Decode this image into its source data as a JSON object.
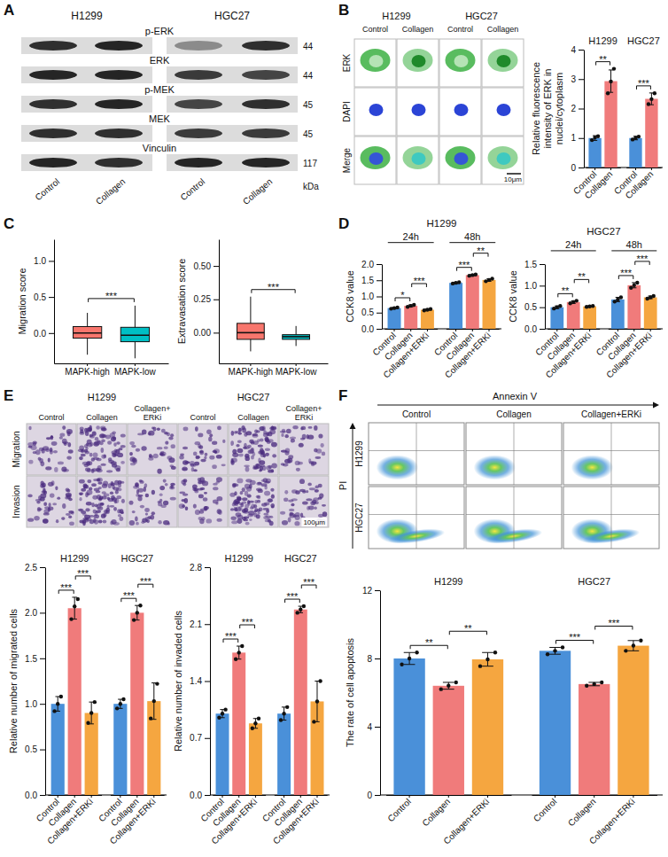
{
  "panel_letters": [
    "A",
    "B",
    "C",
    "D",
    "E",
    "F"
  ],
  "blot": {
    "cell_lines": [
      "H1299",
      "HGC27"
    ],
    "lanes": [
      "Control",
      "Collagen",
      "Control",
      "Collagen"
    ],
    "unit": "kDa",
    "rows": [
      {
        "label": "p-ERK",
        "kda": 44,
        "intensity": [
          0.85,
          0.9,
          0.4,
          0.85
        ]
      },
      {
        "label": "ERK",
        "kda": 44,
        "intensity": [
          0.9,
          0.9,
          0.8,
          0.75
        ]
      },
      {
        "label": "p-MEK",
        "kda": 45,
        "intensity": [
          0.85,
          0.9,
          0.75,
          0.85
        ]
      },
      {
        "label": "MEK",
        "kda": 45,
        "intensity": [
          0.85,
          0.85,
          0.8,
          0.8
        ]
      },
      {
        "label": "Vinculin",
        "kda": 117,
        "intensity": [
          0.9,
          0.85,
          0.9,
          0.9
        ]
      }
    ]
  },
  "if_images": {
    "cell_lines": [
      "H1299",
      "HGC27"
    ],
    "conditions": [
      "Control",
      "Collagen",
      "Control",
      "Collagen"
    ],
    "channels": [
      "ERK",
      "DAPI",
      "Merge"
    ],
    "scale_bar": "10μm"
  },
  "transwell": {
    "cell_lines": [
      "H1299",
      "HGC27"
    ],
    "conditions": [
      "Control",
      "Collagen",
      "Collagen+ERKi"
    ],
    "assays": [
      "Migration",
      "Invasion"
    ],
    "scale_bar": "100μm"
  },
  "flow": {
    "x_label": "Annexin V",
    "y_label": "PI",
    "cell_lines": [
      "H1299",
      "HGC27"
    ],
    "conditions": [
      "Control",
      "Collagen",
      "Collagen+ERKi"
    ]
  },
  "chart_data": [
    {
      "type": "bar",
      "ylabel": "Relative fluorescence intensity of ERK in nuclei/cytoplasm",
      "groups": [
        "H1299",
        "HGC27"
      ],
      "categories": [
        "Control",
        "Collagen",
        "Control",
        "Collagen"
      ],
      "values": [
        1.0,
        2.93,
        1.0,
        2.33
      ],
      "errors": [
        0.08,
        0.38,
        0.06,
        0.2
      ],
      "points": [
        [
          0.93,
          1.02,
          1.06
        ],
        [
          2.52,
          2.92,
          3.35
        ],
        [
          0.95,
          1.0,
          1.05
        ],
        [
          2.15,
          2.32,
          2.52
        ]
      ],
      "colors": [
        "#4a90d9",
        "#f07b7b",
        "#4a90d9",
        "#f07b7b"
      ],
      "ylim": [
        0,
        4
      ],
      "yticks": [
        0,
        1,
        2,
        3,
        4
      ],
      "significance": [
        {
          "group": "H1299",
          "pair": [
            "Control",
            "Collagen"
          ],
          "label": "**"
        },
        {
          "group": "HGC27",
          "pair": [
            "Control",
            "Collagen"
          ],
          "label": "***"
        }
      ]
    },
    {
      "type": "box",
      "ylabel": "Migration score",
      "categories": [
        "MAPK-high",
        "MAPK-low"
      ],
      "q1": [
        -0.07,
        -0.12
      ],
      "median": [
        0.0,
        -0.03
      ],
      "q3": [
        0.09,
        0.08
      ],
      "whisker_low": [
        -0.3,
        -0.35
      ],
      "whisker_high": [
        0.28,
        0.38
      ],
      "colors": [
        "#f8766d",
        "#00bfc4"
      ],
      "ylim": [
        -0.42,
        1.3
      ],
      "yticks": [
        {
          "value": 0,
          "label": "0.0"
        },
        0.5,
        {
          "value": 1,
          "label": "1.0"
        }
      ],
      "significance": [
        {
          "pair": [
            "MAPK-high",
            "MAPK-low"
          ],
          "label": "***"
        }
      ]
    },
    {
      "type": "box",
      "ylabel": "Extravasation score",
      "categories": [
        "MAPK-high",
        "MAPK-low"
      ],
      "q1": [
        -0.05,
        -0.05
      ],
      "median": [
        0.0,
        -0.03
      ],
      "q3": [
        0.07,
        -0.015
      ],
      "whisker_low": [
        -0.14,
        -0.1
      ],
      "whisker_high": [
        0.27,
        0.05
      ],
      "colors": [
        "#f8766d",
        "#00bfc4"
      ],
      "ylim": [
        -0.23,
        0.7
      ],
      "yticks": [
        {
          "value": 0,
          "label": "0.00"
        },
        0.25,
        {
          "value": 0.5,
          "label": "0.50"
        }
      ],
      "significance": [
        {
          "pair": [
            "MAPK-high",
            "MAPK-low"
          ],
          "label": "***"
        }
      ]
    },
    {
      "type": "bar",
      "title": "H1299",
      "ylabel": "CCK8 value",
      "groups": [
        "24h",
        "48h"
      ],
      "categories": [
        "Control",
        "Collagen",
        "Collagen+ERKi",
        "Control",
        "Collagen",
        "Collagen+ERKi"
      ],
      "values": [
        0.64,
        0.71,
        0.59,
        1.42,
        1.66,
        1.51
      ],
      "errors": [
        0.02,
        0.03,
        0.02,
        0.02,
        0.02,
        0.04
      ],
      "points": [
        [
          0.62,
          0.64,
          0.66
        ],
        [
          0.68,
          0.71,
          0.74
        ],
        [
          0.57,
          0.59,
          0.61
        ],
        [
          1.4,
          1.42,
          1.44
        ],
        [
          1.64,
          1.66,
          1.68
        ],
        [
          1.47,
          1.51,
          1.55
        ]
      ],
      "colors": [
        "#4a90d9",
        "#f07b7b",
        "#f5a640",
        "#4a90d9",
        "#f07b7b",
        "#f5a640"
      ],
      "ylim": [
        0,
        2
      ],
      "yticks": [
        {
          "value": 0,
          "label": "0.0"
        },
        0.5,
        {
          "value": 1,
          "label": "1.0"
        },
        1.5,
        {
          "value": 2,
          "label": "2.0"
        }
      ],
      "significance": [
        {
          "group": "24h",
          "pair": [
            "Control",
            "Collagen"
          ],
          "label": "*"
        },
        {
          "group": "24h",
          "pair": [
            "Collagen",
            "Collagen+ERKi"
          ],
          "label": "***"
        },
        {
          "group": "48h",
          "pair": [
            "Control",
            "Collagen"
          ],
          "label": "***"
        },
        {
          "group": "48h",
          "pair": [
            "Collagen",
            "Collagen+ERKi"
          ],
          "label": "**"
        }
      ]
    },
    {
      "type": "bar",
      "title": "HGC27",
      "ylabel": "CCK8 value",
      "groups": [
        "24h",
        "48h"
      ],
      "categories": [
        "Control",
        "Collagen",
        "Collagen+ERKi",
        "Control",
        "Collagen",
        "Collagen+ERKi"
      ],
      "values": [
        0.5,
        0.62,
        0.52,
        0.68,
        1.01,
        0.73
      ],
      "errors": [
        0.03,
        0.03,
        0.01,
        0.05,
        0.06,
        0.03
      ],
      "points": [
        [
          0.47,
          0.5,
          0.53
        ],
        [
          0.59,
          0.62,
          0.65
        ],
        [
          0.51,
          0.52,
          0.53
        ],
        [
          0.63,
          0.68,
          0.73
        ],
        [
          0.95,
          1.01,
          1.07
        ],
        [
          0.7,
          0.73,
          0.76
        ]
      ],
      "colors": [
        "#4a90d9",
        "#f07b7b",
        "#f5a640",
        "#4a90d9",
        "#f07b7b",
        "#f5a640"
      ],
      "ylim": [
        0,
        1.5
      ],
      "yticks": [
        {
          "value": 0,
          "label": "0.0"
        },
        0.5,
        {
          "value": 1,
          "label": "1.0"
        },
        1.5
      ],
      "significance": [
        {
          "group": "24h",
          "pair": [
            "Control",
            "Collagen"
          ],
          "label": "**"
        },
        {
          "group": "24h",
          "pair": [
            "Collagen",
            "Collagen+ERKi"
          ],
          "label": "**"
        },
        {
          "group": "48h",
          "pair": [
            "Control",
            "Collagen"
          ],
          "label": "***"
        },
        {
          "group": "48h",
          "pair": [
            "Collagen",
            "Collagen+ERKi"
          ],
          "label": "***"
        }
      ]
    },
    {
      "type": "bar",
      "ylabel": "Relative number of migrated cells",
      "groups": [
        "H1299",
        "HGC27"
      ],
      "categories": [
        "Control",
        "Collagen",
        "Collagen+ERKi",
        "Control",
        "Collagen",
        "Collagen+ERKi"
      ],
      "values": [
        1.0,
        2.05,
        0.9,
        1.0,
        2.0,
        1.03
      ],
      "errors": [
        0.08,
        0.12,
        0.12,
        0.05,
        0.08,
        0.2
      ],
      "points": [
        [
          0.92,
          1.0,
          1.08
        ],
        [
          1.93,
          2.07,
          2.15
        ],
        [
          0.79,
          0.9,
          1.02
        ],
        [
          0.95,
          1.0,
          1.05
        ],
        [
          1.92,
          2.0,
          2.08
        ],
        [
          0.84,
          1.03,
          1.22
        ]
      ],
      "colors": [
        "#4a90d9",
        "#f07b7b",
        "#f5a640",
        "#4a90d9",
        "#f07b7b",
        "#f5a640"
      ],
      "ylim": [
        0,
        2.5
      ],
      "yticks": [
        {
          "value": 0,
          "label": "0.0"
        },
        0.5,
        {
          "value": 1,
          "label": "1.0"
        },
        1.5,
        {
          "value": 2,
          "label": "2.0"
        },
        2.5
      ],
      "significance": [
        {
          "group": "H1299",
          "pair": [
            "Control",
            "Collagen"
          ],
          "label": "***"
        },
        {
          "group": "H1299",
          "pair": [
            "Collagen",
            "Collagen+ERKi"
          ],
          "label": "***"
        },
        {
          "group": "HGC27",
          "pair": [
            "Control",
            "Collagen"
          ],
          "label": "***"
        },
        {
          "group": "HGC27",
          "pair": [
            "Collagen",
            "Collagen+ERKi"
          ],
          "label": "***"
        }
      ]
    },
    {
      "type": "bar",
      "ylabel": "Relative number of invaded cells",
      "groups": [
        "H1299",
        "HGC27"
      ],
      "categories": [
        "Control",
        "Collagen",
        "Collagen+ERKi",
        "Control",
        "Collagen",
        "Collagen+ERKi"
      ],
      "values": [
        1.0,
        1.75,
        0.88,
        1.0,
        2.28,
        1.15
      ],
      "errors": [
        0.05,
        0.08,
        0.06,
        0.08,
        0.04,
        0.25
      ],
      "points": [
        [
          0.95,
          1.0,
          1.05
        ],
        [
          1.67,
          1.75,
          1.83
        ],
        [
          0.82,
          0.88,
          0.94
        ],
        [
          0.92,
          1.0,
          1.08
        ],
        [
          2.24,
          2.28,
          2.32
        ],
        [
          0.9,
          1.15,
          1.4
        ]
      ],
      "colors": [
        "#4a90d9",
        "#f07b7b",
        "#f5a640",
        "#4a90d9",
        "#f07b7b",
        "#f5a640"
      ],
      "ylim": [
        0,
        2.8
      ],
      "yticks": [
        {
          "value": 0,
          "label": "0.0"
        },
        0.7,
        1.4,
        2.1,
        2.8
      ],
      "significance": [
        {
          "group": "H1299",
          "pair": [
            "Control",
            "Collagen"
          ],
          "label": "***"
        },
        {
          "group": "H1299",
          "pair": [
            "Collagen",
            "Collagen+ERKi"
          ],
          "label": "***"
        },
        {
          "group": "HGC27",
          "pair": [
            "Control",
            "Collagen"
          ],
          "label": "***"
        },
        {
          "group": "HGC27",
          "pair": [
            "Collagen",
            "Collagen+ERKi"
          ],
          "label": "***"
        }
      ]
    },
    {
      "type": "bar",
      "ylabel": "The rate of cell apoptosis",
      "groups": [
        "H1299",
        "HGC27"
      ],
      "categories": [
        "Control",
        "Collagen",
        "Collagen+ERKi",
        "Control",
        "Collagen",
        "Collagen+ERKi"
      ],
      "values": [
        8.0,
        6.4,
        7.95,
        8.45,
        6.5,
        8.75
      ],
      "errors": [
        0.35,
        0.2,
        0.4,
        0.2,
        0.1,
        0.3
      ],
      "points": [
        [
          7.65,
          8.0,
          8.35
        ],
        [
          6.2,
          6.4,
          6.6
        ],
        [
          7.55,
          7.95,
          8.35
        ],
        [
          8.25,
          8.45,
          8.65
        ],
        [
          6.4,
          6.5,
          6.6
        ],
        [
          8.45,
          8.75,
          9.05
        ]
      ],
      "colors": [
        "#4a90d9",
        "#f07b7b",
        "#f5a640",
        "#4a90d9",
        "#f07b7b",
        "#f5a640"
      ],
      "ylim": [
        0,
        12
      ],
      "yticks": [
        0,
        4,
        8,
        12
      ],
      "significance": [
        {
          "group": "H1299",
          "pair": [
            "Control",
            "Collagen"
          ],
          "label": "**"
        },
        {
          "group": "H1299",
          "pair": [
            "Collagen",
            "Collagen+ERKi"
          ],
          "label": "**"
        },
        {
          "group": "HGC27",
          "pair": [
            "Control",
            "Collagen"
          ],
          "label": "***"
        },
        {
          "group": "HGC27",
          "pair": [
            "Collagen",
            "Collagen+ERKi"
          ],
          "label": "***"
        }
      ]
    }
  ]
}
